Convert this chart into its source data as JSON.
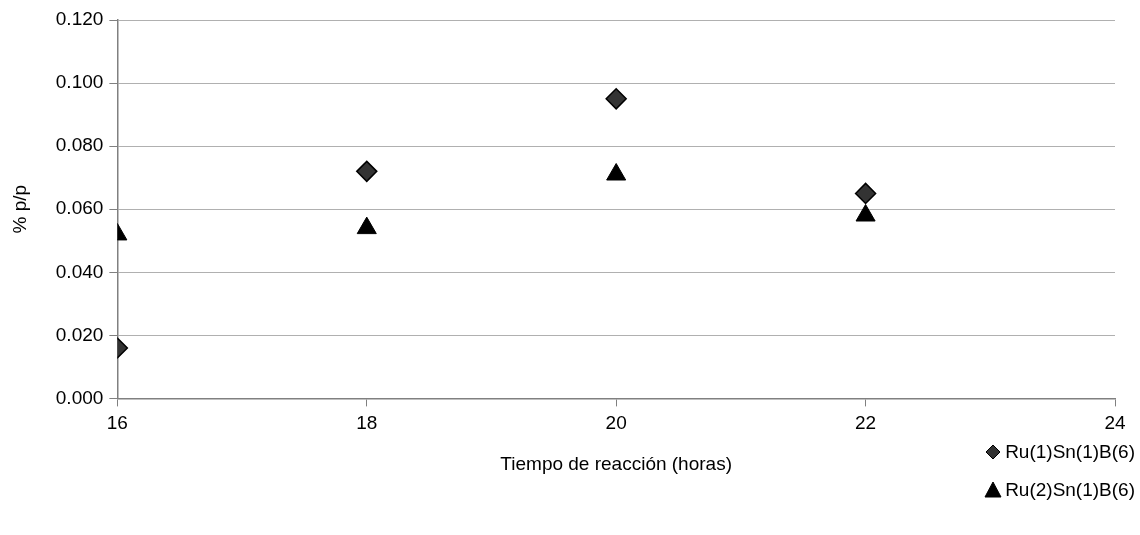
{
  "chart_data": {
    "type": "scatter",
    "xlabel": "Tiempo de reacción (horas)",
    "ylabel": "% p/p",
    "x": [
      16,
      18,
      20,
      22
    ],
    "series": [
      {
        "name": "Ru(1)Sn(1)B(6)",
        "color": "#333333",
        "marker": "diamond",
        "values": [
          0.016,
          0.072,
          0.095,
          0.065
        ]
      },
      {
        "name": "Ru(2)Sn(1)B(6)",
        "color": "#000000",
        "marker": "triangle",
        "values": [
          0.052,
          0.054,
          0.071,
          0.058
        ]
      }
    ],
    "xlim": [
      16,
      24
    ],
    "xticks": [
      16,
      18,
      20,
      22,
      24
    ],
    "ylim": [
      0,
      0.12
    ],
    "yticks": [
      {
        "value": 0,
        "label": "0.000"
      },
      {
        "value": 0.02,
        "label": "0.020"
      },
      {
        "value": 0.04,
        "label": "0.040"
      },
      {
        "value": 0.06,
        "label": "0.060"
      },
      {
        "value": 0.08,
        "label": "0.080"
      },
      {
        "value": 0.1,
        "label": "0.100"
      },
      {
        "value": 0.12,
        "label": "0.120"
      }
    ],
    "grid": "y",
    "legend": "bottom right"
  }
}
